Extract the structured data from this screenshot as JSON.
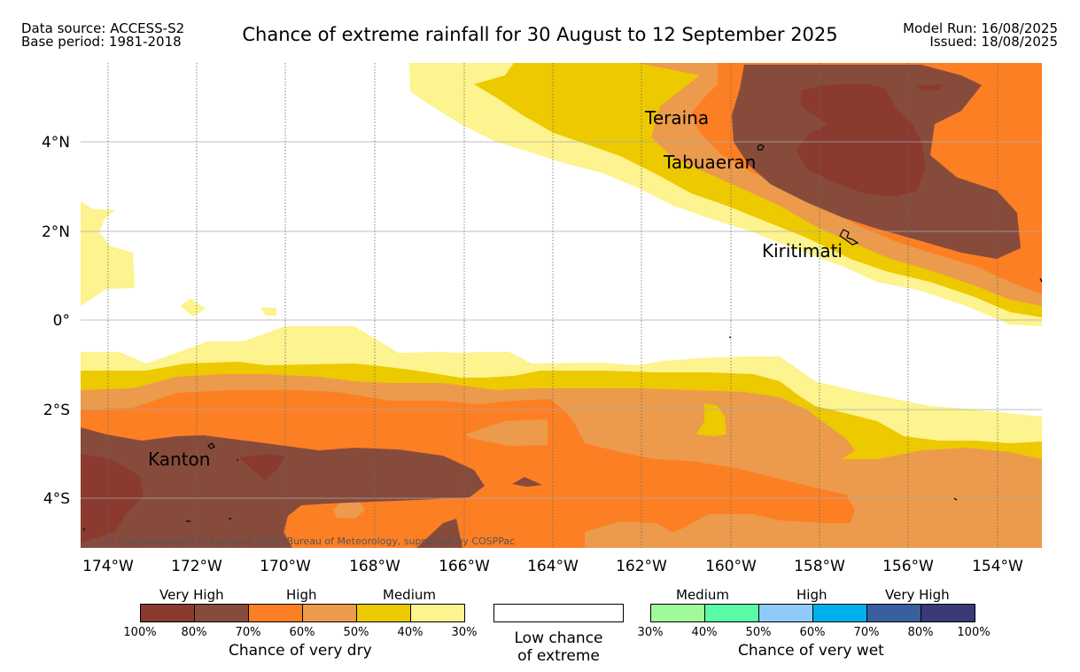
{
  "header": {
    "data_source": "Data source: ACCESS-S2",
    "base_period": "Base period: 1981-2018",
    "title": "Chance of extreme rainfall for 30 August to 12 September 2025",
    "model_run": "Model Run: 16/08/2025",
    "issued": "Issued: 18/08/2025"
  },
  "map": {
    "lat_labels": [
      "4°N",
      "2°N",
      "0°",
      "2°S",
      "4°S"
    ],
    "lon_labels": [
      "174°W",
      "172°W",
      "170°W",
      "168°W",
      "166°W",
      "164°W",
      "162°W",
      "160°W",
      "158°W",
      "156°W",
      "154°W"
    ],
    "place_labels": [
      "Teraina",
      "Tabuaeran",
      "Kiritimati",
      "Kanton"
    ],
    "copyright": "© Commonwealth of Australia 2025, Bureau of Meteorology, supported by COSPPac"
  },
  "legend": {
    "dry": {
      "groups": [
        "Very High",
        "High",
        "Medium"
      ],
      "ticks": [
        "100%",
        "80%",
        "70%",
        "60%",
        "50%",
        "40%",
        "30%"
      ],
      "colors": [
        "#8b3a30",
        "#874b3c",
        "#fd7f24",
        "#eb9b4b",
        "#edc900",
        "#fdf38f"
      ],
      "caption": "Chance of very dry"
    },
    "low": {
      "line1": "Low chance",
      "line2": "of extreme",
      "color": "#ffffff"
    },
    "wet": {
      "groups": [
        "Medium",
        "High",
        "Very High"
      ],
      "ticks": [
        "30%",
        "40%",
        "50%",
        "60%",
        "70%",
        "80%",
        "100%"
      ],
      "colors": [
        "#a0f99a",
        "#5afaa6",
        "#8fcaf8",
        "#00b0ee",
        "#38609e",
        "#3a3a78"
      ],
      "caption": "Chance of very wet"
    }
  }
}
